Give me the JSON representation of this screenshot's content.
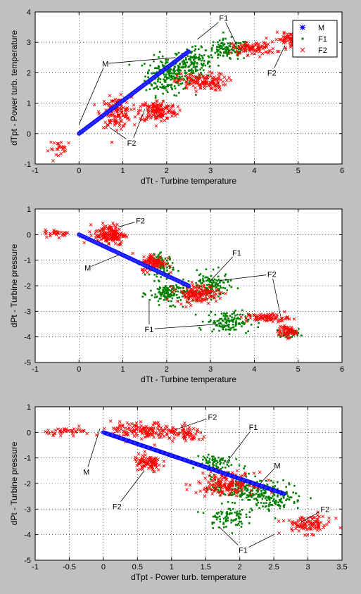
{
  "chart_data": [
    {
      "type": "scatter",
      "xlabel": "dTt - Turbine temperature",
      "ylabel": "dTpt - Power turb. temperature",
      "xlim": [
        -1,
        6
      ],
      "ylim": [
        -1,
        4
      ],
      "xticks": [
        -1,
        0,
        1,
        2,
        3,
        4,
        5,
        6
      ],
      "yticks": [
        -1,
        0,
        1,
        2,
        3,
        4
      ],
      "grid": true,
      "legend": {
        "placement": "top-right",
        "entries": [
          "M",
          "F1",
          "F2"
        ]
      },
      "series": [
        {
          "name": "M",
          "marker": "*",
          "color": "#0000ff",
          "shape": "line",
          "from": [
            0,
            0
          ],
          "to": [
            2.5,
            2.7
          ]
        },
        {
          "name": "F1",
          "marker": "dot",
          "color": "#008000",
          "clusters": [
            {
              "cx": 2.0,
              "cy": 1.9,
              "sx": 0.35,
              "sy": 0.45,
              "n": 200
            },
            {
              "cx": 2.6,
              "cy": 2.3,
              "sx": 0.3,
              "sy": 0.35,
              "n": 140
            },
            {
              "cx": 3.4,
              "cy": 2.75,
              "sx": 0.35,
              "sy": 0.25,
              "n": 120
            }
          ]
        },
        {
          "name": "F2",
          "marker": "x",
          "color": "#ff0000",
          "clusters": [
            {
              "cx": 0.85,
              "cy": 0.7,
              "sx": 0.25,
              "sy": 0.35,
              "n": 130
            },
            {
              "cx": 1.8,
              "cy": 0.75,
              "sx": 0.3,
              "sy": 0.25,
              "n": 150
            },
            {
              "cx": 2.8,
              "cy": 1.7,
              "sx": 0.4,
              "sy": 0.2,
              "n": 130
            },
            {
              "cx": 4.0,
              "cy": 2.8,
              "sx": 0.35,
              "sy": 0.15,
              "n": 90
            },
            {
              "cx": 4.8,
              "cy": 3.1,
              "sx": 0.25,
              "sy": 0.15,
              "n": 70
            },
            {
              "cx": -0.4,
              "cy": -0.5,
              "sx": 0.2,
              "sy": 0.2,
              "n": 25
            }
          ]
        }
      ],
      "annotations": [
        {
          "text": "F1",
          "x": 3.3,
          "y": 3.8,
          "targets": [
            [
              2.7,
              3.1
            ],
            [
              3.6,
              2.9
            ]
          ]
        },
        {
          "text": "M",
          "x": 0.6,
          "y": 2.3,
          "targets": [
            [
              2.2,
              2.5
            ],
            [
              0.0,
              0.3
            ]
          ]
        },
        {
          "text": "F2",
          "x": 4.4,
          "y": 2.0,
          "targets": [
            [
              4.7,
              2.9
            ]
          ]
        },
        {
          "text": "F2",
          "x": 1.2,
          "y": -0.3,
          "targets": [
            [
              0.7,
              0.2
            ],
            [
              1.5,
              0.8
            ]
          ]
        }
      ]
    },
    {
      "type": "scatter",
      "xlabel": "dTt - Turbine temperature",
      "ylabel": "dPt - Turbine pressure",
      "xlim": [
        -1,
        6
      ],
      "ylim": [
        -5,
        1
      ],
      "xticks": [
        -1,
        0,
        1,
        2,
        3,
        4,
        5,
        6
      ],
      "yticks": [
        -5,
        -4,
        -3,
        -2,
        -1,
        0,
        1
      ],
      "grid": true,
      "series": [
        {
          "name": "M",
          "marker": "*",
          "color": "#0000ff",
          "shape": "line",
          "from": [
            0,
            0
          ],
          "to": [
            2.5,
            -2.0
          ]
        },
        {
          "name": "F1",
          "marker": "dot",
          "color": "#008000",
          "clusters": [
            {
              "cx": 1.9,
              "cy": -1.2,
              "sx": 0.2,
              "sy": 0.3,
              "n": 80
            },
            {
              "cx": 2.1,
              "cy": -2.3,
              "sx": 0.35,
              "sy": 0.3,
              "n": 150
            },
            {
              "cx": 3.0,
              "cy": -2.0,
              "sx": 0.3,
              "sy": 0.35,
              "n": 120
            },
            {
              "cx": 3.4,
              "cy": -3.4,
              "sx": 0.35,
              "sy": 0.3,
              "n": 130
            },
            {
              "cx": 4.8,
              "cy": -3.9,
              "sx": 0.15,
              "sy": 0.15,
              "n": 40
            }
          ]
        },
        {
          "name": "F2",
          "marker": "x",
          "color": "#ff0000",
          "clusters": [
            {
              "cx": 0.7,
              "cy": 0.0,
              "sx": 0.25,
              "sy": 0.3,
              "n": 160
            },
            {
              "cx": -0.5,
              "cy": 0.05,
              "sx": 0.2,
              "sy": 0.1,
              "n": 30
            },
            {
              "cx": 1.7,
              "cy": -1.1,
              "sx": 0.2,
              "sy": 0.25,
              "n": 100
            },
            {
              "cx": 2.7,
              "cy": -2.3,
              "sx": 0.35,
              "sy": 0.25,
              "n": 140
            },
            {
              "cx": 4.3,
              "cy": -3.25,
              "sx": 0.35,
              "sy": 0.12,
              "n": 80
            },
            {
              "cx": 4.75,
              "cy": -3.8,
              "sx": 0.15,
              "sy": 0.15,
              "n": 60
            }
          ]
        }
      ],
      "annotations": [
        {
          "text": "F2",
          "x": 1.4,
          "y": 0.55,
          "targets": [
            [
              0.9,
              0.3
            ]
          ]
        },
        {
          "text": "M",
          "x": 0.2,
          "y": -1.3,
          "targets": [
            [
              0.9,
              -0.8
            ]
          ]
        },
        {
          "text": "F1",
          "x": 3.6,
          "y": -0.7,
          "targets": [
            [
              3.0,
              -1.8
            ]
          ]
        },
        {
          "text": "F2",
          "x": 4.4,
          "y": -1.55,
          "targets": [
            [
              3.2,
              -1.8
            ],
            [
              4.6,
              -3.2
            ]
          ]
        },
        {
          "text": "F1",
          "x": 1.6,
          "y": -3.7,
          "targets": [
            [
              1.6,
              -2.6
            ],
            [
              3.2,
              -3.5
            ]
          ]
        }
      ]
    },
    {
      "type": "scatter",
      "xlabel": "dTpt - Power turb. temperature",
      "ylabel": "dPt - Turbine pressure",
      "xlim": [
        -1,
        3.5
      ],
      "ylim": [
        -5,
        1
      ],
      "xticks": [
        -1,
        -0.5,
        0,
        0.5,
        1,
        1.5,
        2,
        2.5,
        3,
        3.5
      ],
      "yticks": [
        -5,
        -4,
        -3,
        -2,
        -1,
        0,
        1
      ],
      "grid": true,
      "series": [
        {
          "name": "M",
          "marker": "*",
          "color": "#0000ff",
          "shape": "line",
          "from": [
            0,
            0
          ],
          "to": [
            2.65,
            -2.4
          ]
        },
        {
          "name": "F1",
          "marker": "dot",
          "color": "#008000",
          "clusters": [
            {
              "cx": 1.6,
              "cy": -1.2,
              "sx": 0.2,
              "sy": 0.3,
              "n": 80
            },
            {
              "cx": 2.0,
              "cy": -2.2,
              "sx": 0.3,
              "sy": 0.35,
              "n": 160
            },
            {
              "cx": 2.5,
              "cy": -2.5,
              "sx": 0.3,
              "sy": 0.4,
              "n": 150
            },
            {
              "cx": 1.8,
              "cy": -3.3,
              "sx": 0.2,
              "sy": 0.3,
              "n": 80
            }
          ]
        },
        {
          "name": "F2",
          "marker": "x",
          "color": "#ff0000",
          "clusters": [
            {
              "cx": 0.6,
              "cy": 0.05,
              "sx": 0.35,
              "sy": 0.25,
              "n": 150
            },
            {
              "cx": -0.5,
              "cy": 0.05,
              "sx": 0.25,
              "sy": 0.1,
              "n": 40
            },
            {
              "cx": 1.25,
              "cy": -0.1,
              "sx": 0.2,
              "sy": 0.2,
              "n": 60
            },
            {
              "cx": 0.65,
              "cy": -1.2,
              "sx": 0.15,
              "sy": 0.25,
              "n": 90
            },
            {
              "cx": 1.8,
              "cy": -2.0,
              "sx": 0.3,
              "sy": 0.3,
              "n": 160
            },
            {
              "cx": 3.0,
              "cy": -3.6,
              "sx": 0.25,
              "sy": 0.25,
              "n": 100
            }
          ]
        }
      ],
      "annotations": [
        {
          "text": "F2",
          "x": 1.6,
          "y": 0.6,
          "targets": [
            [
              1.05,
              0.1
            ]
          ]
        },
        {
          "text": "F1",
          "x": 2.2,
          "y": 0.2,
          "targets": [
            [
              1.8,
              -1.2
            ]
          ]
        },
        {
          "text": "M",
          "x": 2.55,
          "y": -1.3,
          "targets": [
            [
              2.3,
              -2.0
            ]
          ]
        },
        {
          "text": "M",
          "x": -0.25,
          "y": -1.55,
          "targets": [
            [
              -0.05,
              0.15
            ]
          ]
        },
        {
          "text": "F2",
          "x": 0.2,
          "y": -2.9,
          "targets": [
            [
              0.6,
              -1.5
            ]
          ]
        },
        {
          "text": "F2",
          "x": 3.25,
          "y": -3.0,
          "targets": [
            [
              2.9,
              -3.5
            ]
          ]
        },
        {
          "text": "F1",
          "x": 2.05,
          "y": -4.6,
          "targets": [
            [
              1.7,
              -3.7
            ],
            [
              2.5,
              -4.0
            ]
          ]
        }
      ]
    }
  ]
}
